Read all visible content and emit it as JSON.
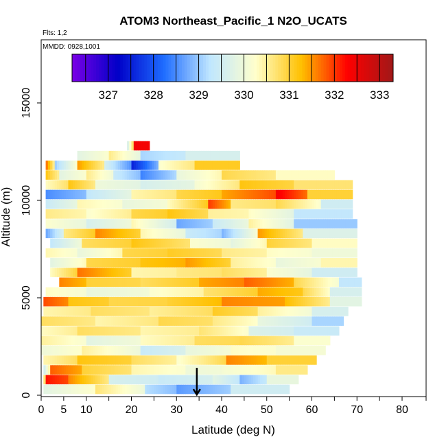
{
  "chart_data": {
    "type": "heatmap",
    "title": "ATOM3 Northeast_Pacific_1 N2O_UCATS",
    "subtitle_flights": "Flts: 1,2",
    "subtitle_dates": "MMDD: 0928,1001",
    "xlabel": "Latitude (deg N)",
    "ylabel": "Altitude (m)",
    "xlim": [
      0,
      84
    ],
    "ylim": [
      0,
      17500
    ],
    "x_ticks": [
      0,
      5,
      10,
      20,
      30,
      40,
      50,
      60,
      70,
      80
    ],
    "x_minor_ticks": [
      15,
      25,
      35,
      45,
      55,
      65,
      75
    ],
    "y_ticks": [
      0,
      5000,
      10000,
      15000
    ],
    "colorbar": {
      "min": 326.2,
      "max": 333.3,
      "ticks": [
        327,
        328,
        329,
        330,
        331,
        332,
        333
      ],
      "colors": [
        "#7a00e6",
        "#0000c8",
        "#1e6cff",
        "#bfe6ff",
        "#ffffcc",
        "#ffc000",
        "#ff0000",
        "#a01818"
      ]
    },
    "marker": {
      "type": "arrow",
      "latitude": 34.5,
      "altitude": 700
    },
    "layers": [
      {
        "alt": 300,
        "lat": [
          0.5,
          12,
          23,
          30,
          42,
          55
        ],
        "val": [
          329.8,
          330.7,
          329.2,
          328.6,
          329.5
        ]
      },
      {
        "alt": 800,
        "lat": [
          0.5,
          1,
          6,
          15,
          26,
          38,
          44,
          50,
          57
        ],
        "val": [
          330.2,
          332.2,
          331.6,
          329.6,
          329.4,
          329.8,
          328.8,
          329.9
        ]
      },
      {
        "alt": 1300,
        "lat": [
          0.5,
          2,
          9,
          20,
          32,
          40,
          52,
          59
        ],
        "val": [
          329.4,
          331.8,
          331.0,
          330.4,
          330.0,
          330.1,
          330.6
        ]
      },
      {
        "alt": 1800,
        "lat": [
          0.5,
          8,
          20,
          30,
          41,
          50,
          61
        ],
        "val": [
          330.4,
          331.2,
          330.8,
          330.2,
          331.6,
          331.0
        ]
      },
      {
        "alt": 2300,
        "lat": [
          0,
          9,
          22,
          32,
          42,
          52,
          63
        ],
        "val": [
          330.0,
          330.5,
          329.4,
          329.9,
          330.3,
          330.1
        ]
      },
      {
        "alt": 2800,
        "lat": [
          0,
          10,
          22,
          34,
          44,
          56,
          64
        ],
        "val": [
          330.5,
          329.8,
          330.3,
          330.8,
          330.9,
          330.2
        ]
      },
      {
        "alt": 3300,
        "lat": [
          0,
          8,
          22,
          35,
          46,
          56,
          66
        ],
        "val": [
          330.3,
          330.8,
          330.4,
          330.7,
          329.7,
          329.4
        ]
      },
      {
        "alt": 3800,
        "lat": [
          0,
          12,
          26,
          38,
          48,
          60,
          67
        ],
        "val": [
          330.8,
          330.4,
          330.9,
          330.6,
          329.9,
          329.1
        ]
      },
      {
        "alt": 4300,
        "lat": [
          0.5,
          11,
          24,
          38,
          48,
          60,
          68
        ],
        "val": [
          330.4,
          330.8,
          330.5,
          331.1,
          330.5,
          329.6
        ]
      },
      {
        "alt": 4800,
        "lat": [
          0.5,
          6,
          15,
          28,
          40,
          54,
          64,
          71
        ],
        "val": [
          331.9,
          331.2,
          330.9,
          331.0,
          331.6,
          331.3,
          329.8
        ]
      },
      {
        "alt": 5300,
        "lat": [
          1,
          10,
          24,
          36,
          48,
          58,
          64,
          71
        ],
        "val": [
          330.3,
          329.9,
          330.2,
          330.7,
          331.4,
          330.9,
          329.6
        ]
      },
      {
        "alt": 5800,
        "lat": [
          4,
          10,
          22,
          35,
          45,
          56,
          66,
          71
        ],
        "val": [
          331.6,
          331.0,
          330.8,
          331.4,
          331.8,
          330.9,
          329.3
        ]
      },
      {
        "alt": 6300,
        "lat": [
          2,
          8,
          20,
          30,
          40,
          50,
          60,
          70
        ],
        "val": [
          330.3,
          331.7,
          330.4,
          330.6,
          330.8,
          330.2,
          329.5
        ]
      },
      {
        "alt": 6800,
        "lat": [
          2,
          10,
          22,
          32,
          42,
          52,
          62,
          70
        ],
        "val": [
          329.8,
          330.9,
          331.2,
          331.5,
          330.5,
          329.9,
          330.4
        ]
      },
      {
        "alt": 7300,
        "lat": [
          1,
          8,
          18,
          28,
          40,
          50,
          60,
          70
        ],
        "val": [
          330.4,
          329.9,
          330.9,
          331.1,
          330.6,
          330.3,
          330.0
        ]
      },
      {
        "alt": 7800,
        "lat": [
          2,
          9,
          20,
          33,
          42,
          50,
          60,
          70
        ],
        "val": [
          329.3,
          330.8,
          331.2,
          330.2,
          329.8,
          331.0,
          330.3
        ]
      },
      {
        "alt": 8300,
        "lat": [
          1,
          5,
          12,
          22,
          32,
          40,
          48,
          58,
          70
        ],
        "val": [
          328.7,
          330.6,
          331.6,
          330.4,
          329.4,
          328.8,
          331.5,
          329.7
        ]
      },
      {
        "alt": 8800,
        "lat": [
          1,
          10,
          20,
          30,
          38,
          46,
          56,
          70
        ],
        "val": [
          330.2,
          329.6,
          330.4,
          328.7,
          329.4,
          330.5,
          329.0
        ]
      },
      {
        "alt": 9300,
        "lat": [
          1,
          10,
          20,
          28,
          37,
          46,
          56,
          69
        ],
        "val": [
          330.6,
          330.2,
          330.9,
          331.2,
          330.5,
          330.3,
          329.3
        ]
      },
      {
        "alt": 9800,
        "lat": [
          1,
          8,
          18,
          28,
          37,
          42,
          52,
          62,
          69
        ],
        "val": [
          329.4,
          330.4,
          329.9,
          330.3,
          332.0,
          330.6,
          330.9,
          329.5
        ]
      },
      {
        "alt": 10300,
        "lat": [
          1,
          10,
          20,
          30,
          40,
          52,
          59,
          69
        ],
        "val": [
          328.5,
          329.3,
          330.4,
          330.9,
          331.4,
          332.4,
          331.0
        ]
      },
      {
        "alt": 10800,
        "lat": [
          1,
          6,
          12,
          22,
          34,
          44,
          56,
          69
        ],
        "val": [
          330.3,
          331.2,
          330.0,
          329.6,
          330.1,
          331.2,
          330.7
        ]
      },
      {
        "alt": 11300,
        "lat": [
          1,
          4,
          10,
          16,
          22,
          30,
          40,
          52,
          65
        ],
        "val": [
          331.2,
          329.8,
          330.6,
          329.4,
          328.4,
          329.9,
          330.9,
          330.3
        ]
      },
      {
        "alt": 11800,
        "lat": [
          1,
          3,
          8,
          14,
          20,
          26,
          34,
          44
        ],
        "val": [
          331.8,
          329.0,
          331.5,
          329.6,
          327.5,
          330.2,
          331.1
        ]
      },
      {
        "alt": 12300,
        "lat": [
          8,
          15,
          22,
          32,
          44
        ],
        "val": [
          329.8,
          330.6,
          329.1,
          329.6
        ]
      },
      {
        "alt": 12800,
        "lat": [
          19,
          20.5,
          24
        ],
        "val": [
          329.5,
          332.4
        ]
      }
    ]
  }
}
